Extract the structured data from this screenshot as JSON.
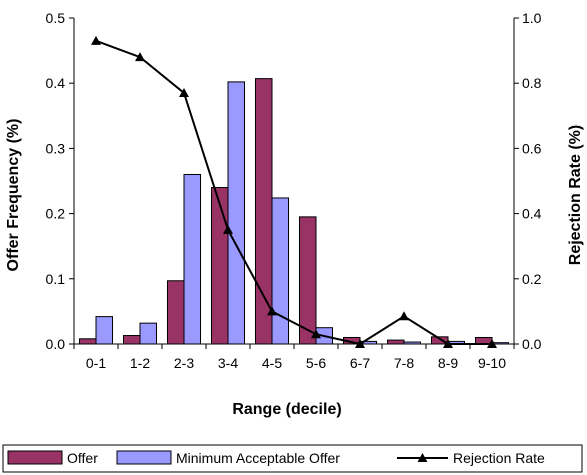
{
  "chart_data": {
    "type": "bar",
    "title": "",
    "xlabel": "Range (decile)",
    "ylabel": "Offer Frequency (%)",
    "y2label": "Rejection Rate (%)",
    "categories": [
      "0-1",
      "1-2",
      "2-3",
      "3-4",
      "4-5",
      "5-6",
      "6-7",
      "7-8",
      "8-9",
      "9-10"
    ],
    "ylim": [
      0,
      0.5
    ],
    "y2lim": [
      0,
      1.0
    ],
    "yticks": [
      "0.0",
      "0.1",
      "0.2",
      "0.3",
      "0.4",
      "0.5"
    ],
    "y2ticks": [
      "0.0",
      "0.2",
      "0.4",
      "0.6",
      "0.8",
      "1.0"
    ],
    "series": [
      {
        "name": "Offer",
        "type": "bar",
        "axis": "left",
        "color": "#993366",
        "values": [
          0.008,
          0.013,
          0.097,
          0.24,
          0.407,
          0.195,
          0.01,
          0.006,
          0.011,
          0.01
        ]
      },
      {
        "name": "Minimum Acceptable Offer",
        "type": "bar",
        "axis": "left",
        "color": "#9999ff",
        "values": [
          0.042,
          0.032,
          0.26,
          0.402,
          0.224,
          0.025,
          0.004,
          0.003,
          0.004,
          0.002
        ]
      },
      {
        "name": "Rejection Rate",
        "type": "line",
        "axis": "right",
        "color": "#000000",
        "marker": "triangle",
        "values": [
          0.93,
          0.88,
          0.77,
          0.35,
          0.1,
          0.03,
          0.0,
          0.085,
          0.0,
          0.0
        ]
      }
    ],
    "legend_position": "bottom",
    "grid": false
  }
}
